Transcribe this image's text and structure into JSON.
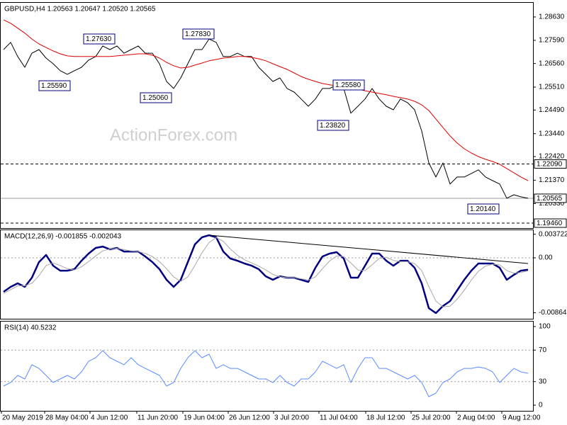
{
  "chart_data": [
    {
      "type": "line",
      "title": "GBPUSD,H4  1.20563 1.20647 1.20520 1.20565",
      "watermark": "ActionForex.com",
      "xlim": [
        -0.5,
        74.7
      ],
      "ylim": [
        1.1924,
        1.2929
      ],
      "yticks": [
        {
          "value": 1.2863,
          "label": "1.28630"
        },
        {
          "value": 1.2759,
          "label": "1.27590"
        },
        {
          "value": 1.2656,
          "label": "1.26560"
        },
        {
          "value": 1.2551,
          "label": "1.25510"
        },
        {
          "value": 1.2449,
          "label": "1.24490"
        },
        {
          "value": 1.2344,
          "label": "1.23440"
        },
        {
          "value": 1.2242,
          "label": "1.22420"
        },
        {
          "value": 1.2137,
          "label": "1.21370"
        },
        {
          "value": 1.2033,
          "label": "1.20330"
        }
      ],
      "series": [
        {
          "color": "#000000",
          "values": [
            1.2718,
            1.275,
            1.2687,
            1.2639,
            1.2702,
            1.2718,
            1.268,
            1.2655,
            1.2624,
            1.2608,
            1.2624,
            1.2639,
            1.2671,
            1.2687,
            1.2734,
            1.2718,
            1.2734,
            1.2702,
            1.2718,
            1.2734,
            1.2702,
            1.2702,
            1.2655,
            1.2576,
            1.2545,
            1.2592,
            1.2655,
            1.2718,
            1.2718,
            1.2765,
            1.275,
            1.2687,
            1.2687,
            1.2702,
            1.2687,
            1.2687,
            1.2639,
            1.2608,
            1.2576,
            1.2592,
            1.2545,
            1.2529,
            1.2498,
            1.2466,
            1.2498,
            1.2545,
            1.2545,
            1.2561,
            1.2545,
            1.2435,
            1.2466,
            1.2498,
            1.2545,
            1.2498,
            1.2466,
            1.245,
            1.2498,
            1.2482,
            1.245,
            1.2356,
            1.2214,
            1.2151,
            1.2214,
            1.212,
            1.2151,
            1.2151,
            1.2167,
            1.2183,
            1.2151,
            1.2135,
            1.212,
            1.2057,
            1.2072,
            1.2063,
            1.20565
          ]
        },
        {
          "color": "#e00000",
          "values": [
            1.285,
            1.2835,
            1.2813,
            1.2791,
            1.2765,
            1.2743,
            1.2727,
            1.2712,
            1.2699,
            1.269,
            1.2687,
            1.2687,
            1.2687,
            1.2687,
            1.2687,
            1.2687,
            1.269,
            1.2693,
            1.2696,
            1.2699,
            1.2699,
            1.2693,
            1.268,
            1.2661,
            1.2646,
            1.2636,
            1.2639,
            1.2649,
            1.2658,
            1.2668,
            1.2674,
            1.268,
            1.2683,
            1.2687,
            1.2687,
            1.2683,
            1.2677,
            1.2668,
            1.2655,
            1.2642,
            1.263,
            1.2614,
            1.2598,
            1.2586,
            1.2576,
            1.2567,
            1.2561,
            1.2557,
            1.2554,
            1.2548,
            1.2542,
            1.2535,
            1.2529,
            1.2523,
            1.2517,
            1.251,
            1.2504,
            1.2498,
            1.2488,
            1.2472,
            1.2447,
            1.2409,
            1.2371,
            1.2334,
            1.2302,
            1.2277,
            1.2258,
            1.2242,
            1.223,
            1.222,
            1.2208,
            1.2189,
            1.217,
            1.2151,
            1.2135
          ]
        }
      ],
      "levels": [
        {
          "value": 1.2209,
          "label": "1.22090",
          "style": "dashed"
        },
        {
          "value": 1.20565,
          "label": "1.20565",
          "style": "solid"
        },
        {
          "value": 1.1946,
          "label": "1.19460",
          "style": "dashed"
        }
      ],
      "annotations": [
        "1.27630",
        "1.25590",
        "1.25060",
        "1.27830",
        "1.25580",
        "1.23820",
        "1.20140"
      ]
    },
    {
      "type": "line",
      "title": "MACD(12,26,9) -0.001855 -0.002043",
      "xlim": [
        -0.5,
        74.7
      ],
      "ylim": [
        -0.00958,
        0.00446
      ],
      "yticks": [
        0.003722,
        {
          "value": 0,
          "label": "0.00"
        },
        -0.008643
      ],
      "series": [
        {
          "color": "#000080",
          "values": [
            -0.00535,
            -0.00457,
            -0.00401,
            -0.00457,
            -0.00312,
            -0.00067,
            0.00045,
            -0.00123,
            -0.00201,
            -0.00201,
            -0.00178,
            -0.00045,
            0.00067,
            0.00156,
            0.00178,
            0.00134,
            0.00156,
            0.001,
            0.001,
            0.001,
            0.00022,
            -0.00067,
            -0.00178,
            -0.00345,
            -0.00457,
            -0.00345,
            -0.00067,
            0.00212,
            0.00323,
            0.00356,
            0.00323,
            0.001,
            -0.00011,
            -0.00045,
            -0.00089,
            -0.00123,
            -0.00178,
            -0.0029,
            -0.00345,
            -0.0029,
            -0.00312,
            -0.00312,
            -0.00345,
            -0.00379,
            -0.00156,
            0.00022,
            0.00067,
            0.00089,
            -0.00011,
            -0.00312,
            -0.00312,
            -0.00123,
            0.00067,
            0.00067,
            -0.00045,
            -0.00123,
            -0.00045,
            -0.00045,
            -0.00156,
            -0.00401,
            -0.00791,
            -0.00869,
            -0.00757,
            -0.0068,
            -0.00512,
            -0.00345,
            -0.00201,
            -0.00089,
            -0.00089,
            -0.00089,
            -0.00156,
            -0.00345,
            -0.00267,
            -0.00201,
            -0.001855
          ]
        },
        {
          "color": "#a8a8a8",
          "values": [
            -0.0056,
            -0.005,
            -0.0044,
            -0.0044,
            -0.004,
            -0.0028,
            -0.0012,
            -0.0008,
            -0.0012,
            -0.0017,
            -0.0019,
            -0.0014,
            -0.0006,
            0.0003,
            0.0011,
            0.0014,
            0.0015,
            0.0013,
            0.0011,
            0.001,
            0.0007,
            0.0002,
            -0.0006,
            -0.0017,
            -0.003,
            -0.0037,
            -0.003,
            -0.0012,
            0.0008,
            0.0024,
            0.0032,
            0.0026,
            0.0014,
            0.0004,
            -0.0003,
            -0.0008,
            -0.0013,
            -0.0019,
            -0.0026,
            -0.003,
            -0.0031,
            -0.0031,
            -0.0033,
            -0.0035,
            -0.003,
            -0.0017,
            -0.0005,
            0.0003,
            0.0002,
            -0.0008,
            -0.0019,
            -0.002,
            -0.0011,
            -0.0001,
            0.0001,
            -0.0004,
            -0.0006,
            -0.0006,
            -0.0009,
            -0.002,
            -0.0045,
            -0.0068,
            -0.0077,
            -0.0076,
            -0.0065,
            -0.0051,
            -0.0035,
            -0.0021,
            -0.0013,
            -0.001,
            -0.0011,
            -0.002,
            -0.0024,
            -0.0023,
            -0.002043
          ]
        }
      ],
      "levels": [
        {
          "value": 0,
          "style": "dotted"
        }
      ]
    },
    {
      "type": "line",
      "title": "RSI(14) 40.5232",
      "xlim": [
        -0.5,
        74.7
      ],
      "ylim": [
        -7.2,
        107.2
      ],
      "yticks": [
        100,
        70,
        30,
        0
      ],
      "series": [
        {
          "color": "#5b8cff",
          "values": [
            24.3,
            28.8,
            37.8,
            33.3,
            51.4,
            46.8,
            37.8,
            28.8,
            33.3,
            37.8,
            33.3,
            42.3,
            55.9,
            60.4,
            69.4,
            60.4,
            55.9,
            51.4,
            60.4,
            51.4,
            46.8,
            42.3,
            37.8,
            24.3,
            28.8,
            46.8,
            60.4,
            69.4,
            60.4,
            64.9,
            46.8,
            51.4,
            46.8,
            46.8,
            42.3,
            37.8,
            33.3,
            33.3,
            28.8,
            37.8,
            28.8,
            24.3,
            33.3,
            33.3,
            42.3,
            55.9,
            51.4,
            46.8,
            51.4,
            28.8,
            46.8,
            60.4,
            60.4,
            46.8,
            46.8,
            42.3,
            37.8,
            33.3,
            37.8,
            28.8,
            10.8,
            15.3,
            28.8,
            33.3,
            42.3,
            46.8,
            46.8,
            48.6,
            46.8,
            42.3,
            28.8,
            37.8,
            46.8,
            42.3,
            40.5232
          ]
        }
      ],
      "levels": [
        {
          "value": 70,
          "style": "dotted"
        },
        {
          "value": 30,
          "style": "dotted"
        }
      ],
      "xticks": [
        {
          "value": -0.3,
          "label": "20 May 2019"
        },
        {
          "value": 5.8,
          "label": "28 May 04:00"
        },
        {
          "value": 12.2,
          "label": "4 Jun 12:00"
        },
        {
          "value": 18.8,
          "label": "11 Jun 20:00"
        },
        {
          "value": 25.3,
          "label": "19 Jun 04:00"
        },
        {
          "value": 31.7,
          "label": "26 Jun 12:00"
        },
        {
          "value": 38.1,
          "label": "3 Jul 20:00"
        },
        {
          "value": 44.5,
          "label": "11 Jul 04:00"
        },
        {
          "value": 51.1,
          "label": "18 Jul 12:00"
        },
        {
          "value": 57.5,
          "label": "25 Jul 20:00"
        },
        {
          "value": 63.9,
          "label": "2 Aug 04:00"
        },
        {
          "value": 70.3,
          "label": "9 Aug 12:00"
        }
      ]
    }
  ]
}
